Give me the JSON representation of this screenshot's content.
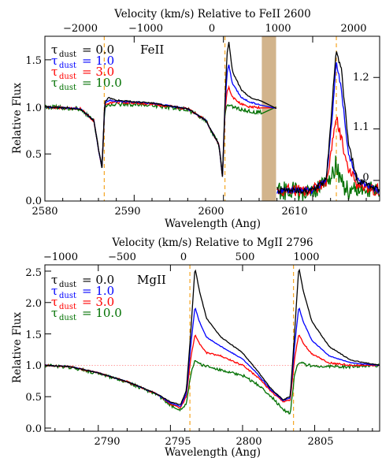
{
  "colors": {
    "tau0": "#000000",
    "tau1": "#0000ff",
    "tau3": "#ff0000",
    "tau10": "#007000",
    "guide": "#f5a623",
    "band": "#d2b48c",
    "baseline": "#ff8080"
  },
  "chart_data": [
    {
      "type": "line",
      "ion_label": "FeII",
      "top_axis_label": "Velocity (km/s) Relative to FeII 2600",
      "xlabel": "Wavelength (Ang)",
      "ylabel": "Relative Flux",
      "xlim": [
        2580,
        2617.5
      ],
      "ylim": [
        0,
        1.75
      ],
      "x_ticks": [
        "2580",
        "2590",
        "2600",
        "2610"
      ],
      "y_ticks": [
        "0.0",
        "0.5",
        "1.0",
        "1.5"
      ],
      "top_ticks": [
        "−2000",
        "−1000",
        "0",
        "1000",
        "2000"
      ],
      "right_ticks": [
        "1.0",
        "1.1",
        "1.2"
      ],
      "inset": {
        "x_range": [
          2606,
          2617.5
        ],
        "ylim": [
          0.96,
          1.28
        ],
        "right_axis": true
      },
      "shaded_band": [
        2604.3,
        2605.9
      ],
      "guide_lines": [
        2586.65,
        2600.17,
        2612.65
      ],
      "legend": [
        {
          "sym": "τ",
          "sub": "dust",
          "value": "= 0.0"
        },
        {
          "sym": "τ",
          "sub": "dust",
          "value": "= 1.0"
        },
        {
          "sym": "τ",
          "sub": "dust",
          "value": "= 3.0"
        },
        {
          "sym": "τ",
          "sub": "dust",
          "value": "= 10.0"
        }
      ],
      "series": [
        {
          "tau": 0.0,
          "points": [
            [
              2580,
              1.0
            ],
            [
              2584,
              0.98
            ],
            [
              2585.5,
              0.85
            ],
            [
              2586.0,
              0.55
            ],
            [
              2586.4,
              0.35
            ],
            [
              2586.7,
              1.05
            ],
            [
              2587.2,
              1.1
            ],
            [
              2588,
              1.07
            ],
            [
              2592,
              1.04
            ],
            [
              2596,
              0.98
            ],
            [
              2598,
              0.86
            ],
            [
              2599.5,
              0.6
            ],
            [
              2599.9,
              0.25
            ],
            [
              2600.15,
              1.0
            ],
            [
              2600.4,
              1.55
            ],
            [
              2600.6,
              1.7
            ],
            [
              2601,
              1.38
            ],
            [
              2602,
              1.18
            ],
            [
              2603,
              1.1
            ],
            [
              2604.2,
              1.06
            ],
            [
              2606,
              0.98
            ],
            [
              2610,
              0.98
            ],
            [
              2611.5,
              1.0
            ],
            [
              2612.2,
              1.15
            ],
            [
              2612.6,
              1.25
            ],
            [
              2613.2,
              1.22
            ],
            [
              2614,
              1.07
            ],
            [
              2615,
              1.0
            ],
            [
              2617.5,
              0.98
            ]
          ]
        },
        {
          "tau": 1.0,
          "points": [
            [
              2580,
              1.0
            ],
            [
              2584,
              0.98
            ],
            [
              2585.5,
              0.85
            ],
            [
              2586.0,
              0.55
            ],
            [
              2586.4,
              0.35
            ],
            [
              2586.7,
              1.03
            ],
            [
              2587.2,
              1.07
            ],
            [
              2588,
              1.06
            ],
            [
              2592,
              1.04
            ],
            [
              2596,
              0.98
            ],
            [
              2598,
              0.86
            ],
            [
              2599.5,
              0.6
            ],
            [
              2599.9,
              0.25
            ],
            [
              2600.15,
              0.95
            ],
            [
              2600.4,
              1.35
            ],
            [
              2600.6,
              1.45
            ],
            [
              2601,
              1.25
            ],
            [
              2602,
              1.1
            ],
            [
              2603,
              1.05
            ],
            [
              2604.2,
              1.02
            ],
            [
              2606,
              0.98
            ],
            [
              2610,
              0.98
            ],
            [
              2611.5,
              1.0
            ],
            [
              2612.2,
              1.12
            ],
            [
              2612.6,
              1.23
            ],
            [
              2613.2,
              1.18
            ],
            [
              2614,
              1.05
            ],
            [
              2615,
              1.0
            ],
            [
              2617.5,
              0.98
            ]
          ]
        },
        {
          "tau": 3.0,
          "points": [
            [
              2580,
              1.0
            ],
            [
              2584,
              0.98
            ],
            [
              2585.5,
              0.85
            ],
            [
              2586.0,
              0.55
            ],
            [
              2586.4,
              0.35
            ],
            [
              2586.7,
              1.02
            ],
            [
              2587.2,
              1.04
            ],
            [
              2588,
              1.05
            ],
            [
              2592,
              1.03
            ],
            [
              2596,
              0.98
            ],
            [
              2598,
              0.86
            ],
            [
              2599.5,
              0.6
            ],
            [
              2599.9,
              0.25
            ],
            [
              2600.15,
              0.92
            ],
            [
              2600.4,
              1.15
            ],
            [
              2600.6,
              1.22
            ],
            [
              2601,
              1.1
            ],
            [
              2602,
              1.03
            ],
            [
              2603,
              1.0
            ],
            [
              2604.2,
              0.99
            ],
            [
              2606,
              0.98
            ],
            [
              2610,
              0.98
            ],
            [
              2611.5,
              1.0
            ],
            [
              2612.2,
              1.07
            ],
            [
              2612.6,
              1.13
            ],
            [
              2613.2,
              1.08
            ],
            [
              2614,
              1.02
            ],
            [
              2615,
              0.99
            ],
            [
              2617.5,
              0.98
            ]
          ]
        },
        {
          "tau": 10.0,
          "points": [
            [
              2580,
              1.0
            ],
            [
              2584,
              0.98
            ],
            [
              2585.5,
              0.85
            ],
            [
              2586.0,
              0.55
            ],
            [
              2586.4,
              0.35
            ],
            [
              2586.7,
              1.0
            ],
            [
              2587.2,
              1.02
            ],
            [
              2588,
              1.03
            ],
            [
              2592,
              1.02
            ],
            [
              2596,
              0.97
            ],
            [
              2598,
              0.86
            ],
            [
              2599.5,
              0.6
            ],
            [
              2599.9,
              0.25
            ],
            [
              2600.15,
              0.88
            ],
            [
              2600.4,
              1.03
            ],
            [
              2600.6,
              1.02
            ],
            [
              2601,
              1.0
            ],
            [
              2602,
              0.97
            ],
            [
              2603,
              0.95
            ],
            [
              2604.2,
              0.94
            ],
            [
              2606,
              0.98
            ],
            [
              2610,
              0.98
            ],
            [
              2611.5,
              0.99
            ],
            [
              2612.2,
              1.01
            ],
            [
              2612.6,
              1.03
            ],
            [
              2613.2,
              1.0
            ],
            [
              2614,
              0.98
            ],
            [
              2615,
              0.98
            ],
            [
              2617.5,
              0.98
            ]
          ]
        }
      ]
    },
    {
      "type": "line",
      "ion_label": "MgII",
      "top_axis_label": "Velocity (km/s) Relative to MgII 2796",
      "xlabel": "Wavelength (Ang)",
      "ylabel": "Relative Flux",
      "xlim": [
        2786.3,
        2809.5
      ],
      "ylim": [
        -0.05,
        2.6
      ],
      "x_ticks": [
        "2790",
        "2795",
        "2800",
        "2805"
      ],
      "y_ticks": [
        "0.0",
        "0.5",
        "1.0",
        "1.5",
        "2.0",
        "2.5"
      ],
      "top_ticks": [
        "−1000",
        "−500",
        "0",
        "500",
        "1000"
      ],
      "baseline": 1.0,
      "guide_lines": [
        2796.35,
        2803.53
      ],
      "legend": [
        {
          "sym": "τ",
          "sub": "dust",
          "value": "= 0.0"
        },
        {
          "sym": "τ",
          "sub": "dust",
          "value": "= 1.0"
        },
        {
          "sym": "τ",
          "sub": "dust",
          "value": "= 3.0"
        },
        {
          "sym": "τ",
          "sub": "dust",
          "value": "= 10.0"
        }
      ],
      "series": [
        {
          "tau": 0.0,
          "points": [
            [
              2786.3,
              1.0
            ],
            [
              2788,
              0.98
            ],
            [
              2790,
              0.88
            ],
            [
              2792,
              0.74
            ],
            [
              2794,
              0.55
            ],
            [
              2795,
              0.42
            ],
            [
              2795.7,
              0.37
            ],
            [
              2796.1,
              0.6
            ],
            [
              2796.4,
              1.5
            ],
            [
              2796.7,
              2.56
            ],
            [
              2797.0,
              2.2
            ],
            [
              2797.5,
              1.75
            ],
            [
              2798.5,
              1.45
            ],
            [
              2800,
              1.2
            ],
            [
              2801,
              0.92
            ],
            [
              2802,
              0.62
            ],
            [
              2802.8,
              0.45
            ],
            [
              2803.3,
              0.5
            ],
            [
              2803.6,
              1.5
            ],
            [
              2803.9,
              2.56
            ],
            [
              2804.2,
              2.2
            ],
            [
              2804.8,
              1.7
            ],
            [
              2806,
              1.3
            ],
            [
              2807.5,
              1.08
            ],
            [
              2809.5,
              1.0
            ]
          ]
        },
        {
          "tau": 1.0,
          "points": [
            [
              2786.3,
              1.0
            ],
            [
              2788,
              0.98
            ],
            [
              2790,
              0.88
            ],
            [
              2792,
              0.74
            ],
            [
              2794,
              0.55
            ],
            [
              2795,
              0.4
            ],
            [
              2795.7,
              0.34
            ],
            [
              2796.1,
              0.55
            ],
            [
              2796.4,
              1.3
            ],
            [
              2796.7,
              1.93
            ],
            [
              2797.0,
              1.7
            ],
            [
              2797.5,
              1.45
            ],
            [
              2798.5,
              1.3
            ],
            [
              2800,
              1.1
            ],
            [
              2801,
              0.87
            ],
            [
              2802,
              0.6
            ],
            [
              2802.8,
              0.44
            ],
            [
              2803.3,
              0.48
            ],
            [
              2803.6,
              1.3
            ],
            [
              2803.9,
              1.93
            ],
            [
              2804.2,
              1.7
            ],
            [
              2804.8,
              1.4
            ],
            [
              2806,
              1.15
            ],
            [
              2807.5,
              1.04
            ],
            [
              2809.5,
              1.0
            ]
          ]
        },
        {
          "tau": 3.0,
          "points": [
            [
              2786.3,
              1.0
            ],
            [
              2788,
              0.98
            ],
            [
              2790,
              0.88
            ],
            [
              2792,
              0.74
            ],
            [
              2794,
              0.55
            ],
            [
              2795,
              0.38
            ],
            [
              2795.7,
              0.32
            ],
            [
              2796.1,
              0.5
            ],
            [
              2796.4,
              1.1
            ],
            [
              2796.7,
              1.5
            ],
            [
              2797.0,
              1.35
            ],
            [
              2797.5,
              1.2
            ],
            [
              2798.5,
              1.15
            ],
            [
              2800,
              1.0
            ],
            [
              2801,
              0.82
            ],
            [
              2802,
              0.58
            ],
            [
              2802.8,
              0.42
            ],
            [
              2803.3,
              0.45
            ],
            [
              2803.6,
              1.1
            ],
            [
              2803.9,
              1.5
            ],
            [
              2804.2,
              1.35
            ],
            [
              2804.8,
              1.18
            ],
            [
              2806,
              1.04
            ],
            [
              2807.5,
              1.0
            ],
            [
              2809.5,
              1.0
            ]
          ]
        },
        {
          "tau": 10.0,
          "points": [
            [
              2786.3,
              1.0
            ],
            [
              2788,
              0.97
            ],
            [
              2790,
              0.87
            ],
            [
              2792,
              0.73
            ],
            [
              2794,
              0.54
            ],
            [
              2795,
              0.37
            ],
            [
              2795.7,
              0.28
            ],
            [
              2796.1,
              0.4
            ],
            [
              2796.4,
              0.85
            ],
            [
              2796.7,
              1.07
            ],
            [
              2797.0,
              1.02
            ],
            [
              2797.5,
              0.98
            ],
            [
              2798.5,
              0.93
            ],
            [
              2800,
              0.84
            ],
            [
              2801,
              0.7
            ],
            [
              2802,
              0.5
            ],
            [
              2802.8,
              0.3
            ],
            [
              2803.3,
              0.22
            ],
            [
              2803.6,
              0.85
            ],
            [
              2803.9,
              1.05
            ],
            [
              2804.2,
              1.02
            ],
            [
              2804.8,
              0.99
            ],
            [
              2806,
              0.98
            ],
            [
              2807.5,
              0.98
            ],
            [
              2809.5,
              1.0
            ]
          ]
        }
      ]
    }
  ]
}
